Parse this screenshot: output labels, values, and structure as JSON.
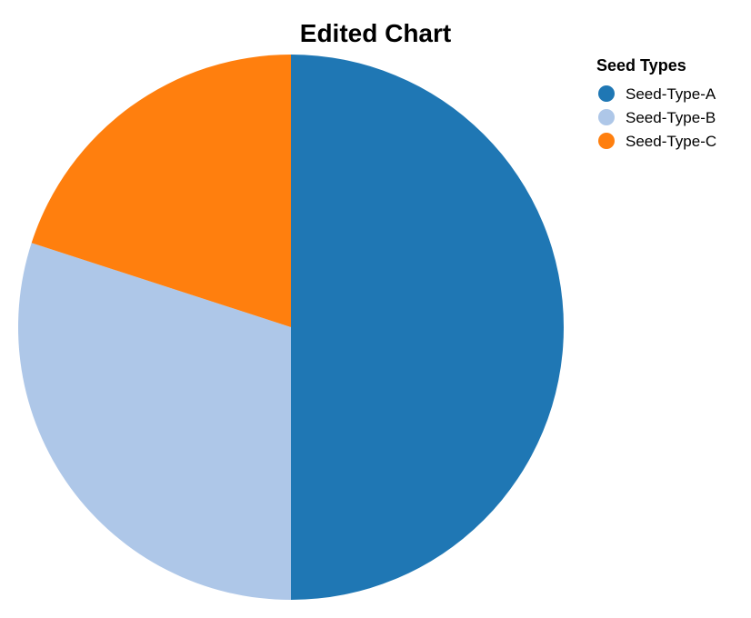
{
  "chart_data": {
    "type": "pie",
    "title": "Edited Chart",
    "legend": {
      "title": "Seed Types",
      "position": "top-right"
    },
    "slices": [
      {
        "label": "Seed-Type-A",
        "value": 50,
        "color": "#1f77b4"
      },
      {
        "label": "Seed-Type-B",
        "value": 30,
        "color": "#aec7e8"
      },
      {
        "label": "Seed-Type-C",
        "value": 20,
        "color": "#ff7f0e"
      }
    ]
  }
}
